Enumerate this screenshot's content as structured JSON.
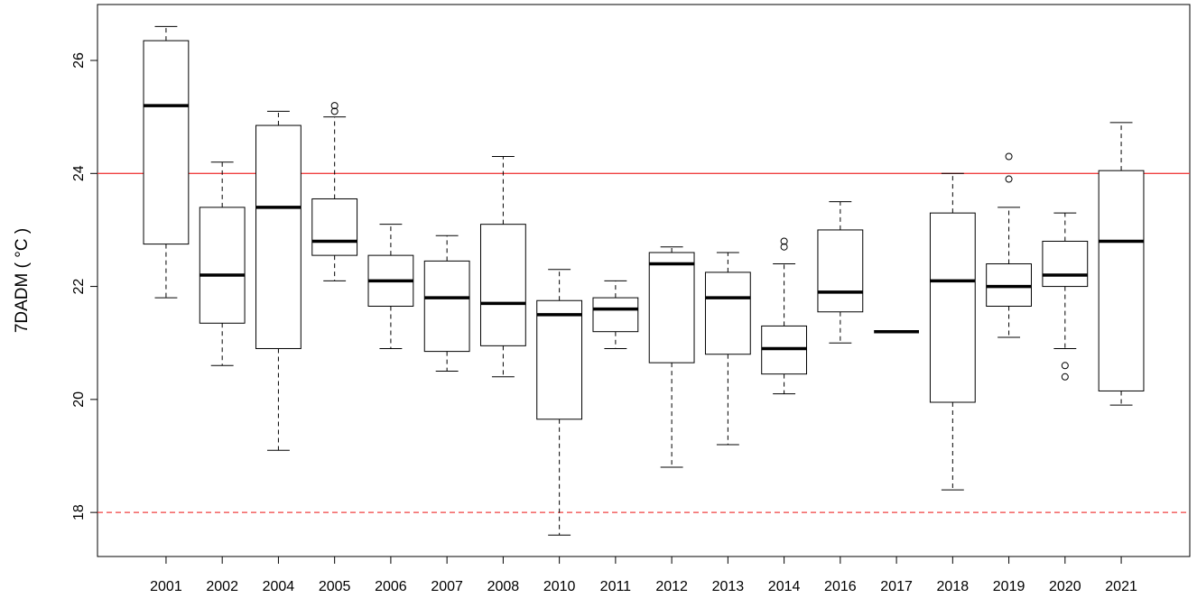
{
  "chart_data": {
    "type": "box",
    "y_label": "7DADM ( °C )",
    "categories": [
      "2001",
      "2002",
      "2004",
      "2005",
      "2006",
      "2007",
      "2008",
      "2010",
      "2011",
      "2012",
      "2013",
      "2014",
      "2016",
      "2017",
      "2018",
      "2019",
      "2020",
      "2021"
    ],
    "whisker_low": [
      21.8,
      20.6,
      19.1,
      22.1,
      20.9,
      20.5,
      20.4,
      17.6,
      20.9,
      18.8,
      19.2,
      20.1,
      21.0,
      21.2,
      18.4,
      21.1,
      20.9,
      19.9
    ],
    "q1": [
      22.75,
      21.35,
      20.9,
      22.55,
      21.65,
      20.85,
      20.95,
      19.65,
      21.2,
      20.65,
      20.8,
      20.45,
      21.55,
      21.2,
      19.95,
      21.65,
      22.0,
      20.15
    ],
    "median": [
      25.2,
      22.2,
      23.4,
      22.8,
      22.1,
      21.8,
      21.7,
      21.5,
      21.6,
      22.4,
      21.8,
      20.9,
      21.9,
      21.2,
      22.1,
      22.0,
      22.2,
      22.8
    ],
    "q3": [
      26.35,
      23.4,
      24.85,
      23.55,
      22.55,
      22.45,
      23.1,
      21.75,
      21.8,
      22.6,
      22.25,
      21.3,
      23.0,
      21.2,
      23.3,
      22.4,
      22.8,
      24.05
    ],
    "whisker_high": [
      26.6,
      24.2,
      25.1,
      25.0,
      23.1,
      22.9,
      24.3,
      22.3,
      22.1,
      22.7,
      22.6,
      22.4,
      23.5,
      21.2,
      24.0,
      23.4,
      23.3,
      24.9
    ],
    "outliers": [
      [],
      [],
      [],
      [
        25.2,
        25.1
      ],
      [],
      [],
      [],
      [],
      [],
      [],
      [],
      [
        22.8,
        22.7
      ],
      [],
      [],
      [],
      [
        24.3,
        23.9
      ],
      [
        20.6,
        20.4
      ],
      []
    ],
    "ylim": [
      17.22,
      26.99
    ],
    "yticks": [
      18,
      20,
      22,
      24,
      26
    ],
    "reference_lines": [
      {
        "value": 24,
        "color": "#f04040",
        "dashed": false
      },
      {
        "value": 18,
        "color": "#f04040",
        "dashed": true
      }
    ],
    "color": "#000000"
  }
}
